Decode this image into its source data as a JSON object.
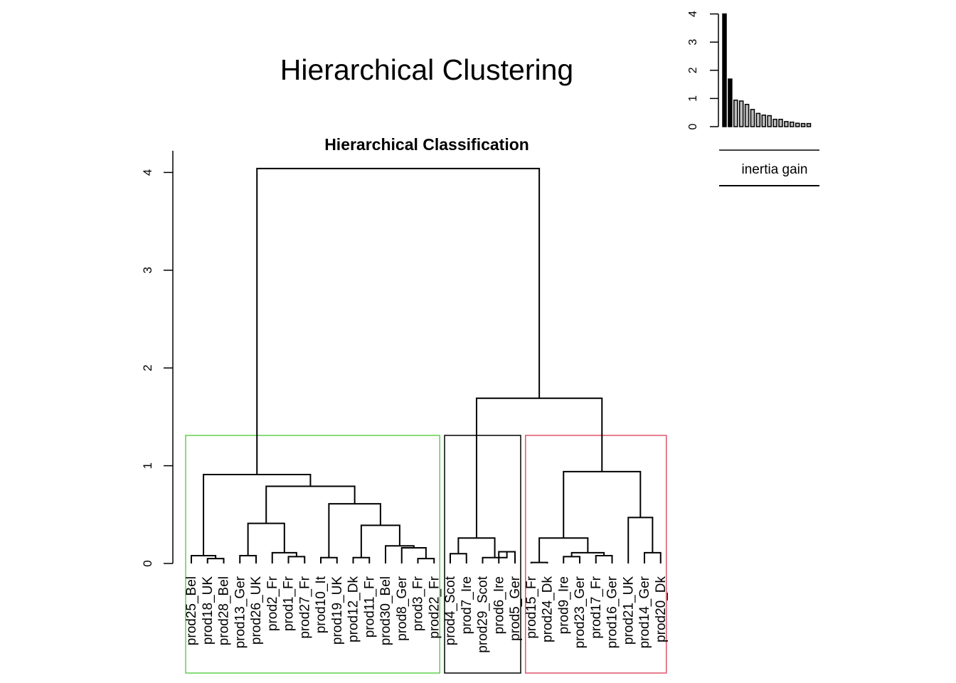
{
  "figure_title": "Hierarchical Clustering",
  "legend_label": "inertia gain",
  "chart_data": [
    {
      "type": "dendrogram",
      "title": "Hierarchical Classification",
      "ylim": [
        0,
        4.2
      ],
      "y_ticks": [
        0,
        1,
        2,
        3,
        4
      ],
      "leaves": [
        "prod25_Bel",
        "prod18_UK",
        "prod28_Bel",
        "prod13_Ger",
        "prod26_UK",
        "prod2_Fr",
        "prod1_Fr",
        "prod27_Fr",
        "prod10_It",
        "prod19_UK",
        "prod12_Dk",
        "prod11_Fr",
        "prod30_Bel",
        "prod8_Ger",
        "prod3_Fr",
        "prod22_Fr",
        "prod4_Scot",
        "prod7_Ire",
        "prod29_Scot",
        "prod6_Ire",
        "prod5_Ger",
        "prod15_Fr",
        "prod24_Dk",
        "prod9_Ire",
        "prod23_Ger",
        "prod17_Fr",
        "prod16_Ger",
        "prod21_UK",
        "prod14_Ger",
        "prod20_Dk"
      ],
      "merges": [
        {
          "id": "a1",
          "left": "prod18_UK",
          "right": "prod28_Bel",
          "height": 0.05
        },
        {
          "id": "a2",
          "left": "prod25_Bel",
          "right": "a1",
          "height": 0.08
        },
        {
          "id": "a3",
          "left": "prod1_Fr",
          "right": "prod27_Fr",
          "height": 0.07
        },
        {
          "id": "a4",
          "left": "prod2_Fr",
          "right": "a3",
          "height": 0.11
        },
        {
          "id": "a5",
          "left": "prod13_Ger",
          "right": "prod26_UK",
          "height": 0.08
        },
        {
          "id": "a6",
          "left": "a5",
          "right": "a4",
          "height": 0.41
        },
        {
          "id": "a7",
          "left": "prod10_It",
          "right": "prod19_UK",
          "height": 0.06
        },
        {
          "id": "a8",
          "left": "prod12_Dk",
          "right": "prod11_Fr",
          "height": 0.06
        },
        {
          "id": "a9",
          "left": "prod3_Fr",
          "right": "prod22_Fr",
          "height": 0.05
        },
        {
          "id": "a10",
          "left": "prod8_Ger",
          "right": "a9",
          "height": 0.16
        },
        {
          "id": "a11",
          "left": "prod30_Bel",
          "right": "a10",
          "height": 0.18
        },
        {
          "id": "a12",
          "left": "a8",
          "right": "a11",
          "height": 0.39
        },
        {
          "id": "a13",
          "left": "a7",
          "right": "a12",
          "height": 0.61
        },
        {
          "id": "a14",
          "left": "a6",
          "right": "a13",
          "height": 0.79
        },
        {
          "id": "a15",
          "left": "a2",
          "right": "a14",
          "height": 0.91
        },
        {
          "id": "b1",
          "left": "prod6_Ire",
          "right": "prod5_Ger",
          "height": 0.12
        },
        {
          "id": "b2",
          "left": "prod4_Scot",
          "right": "prod7_Ire",
          "height": 0.1
        },
        {
          "id": "b3",
          "left": "prod29_Scot",
          "right": "b1",
          "height": 0.06
        },
        {
          "id": "b4",
          "left": "b2",
          "right": "b3",
          "height": 0.26
        },
        {
          "id": "c1",
          "left": "prod15_Fr",
          "right": "prod24_Dk",
          "height": 0.01
        },
        {
          "id": "c2",
          "left": "prod9_Ire",
          "right": "prod23_Ger",
          "height": 0.07
        },
        {
          "id": "c3",
          "left": "prod17_Fr",
          "right": "prod16_Ger",
          "height": 0.08
        },
        {
          "id": "c4",
          "left": "c2",
          "right": "c3",
          "height": 0.11
        },
        {
          "id": "c5",
          "left": "c1",
          "right": "c4",
          "height": 0.26
        },
        {
          "id": "c6",
          "left": "prod14_Ger",
          "right": "prod20_Dk",
          "height": 0.11
        },
        {
          "id": "c7",
          "left": "prod21_UK",
          "right": "c6",
          "height": 0.47
        },
        {
          "id": "c8",
          "left": "c5",
          "right": "c7",
          "height": 0.94
        },
        {
          "id": "d1",
          "left": "b4",
          "right": "c8",
          "height": 1.69
        },
        {
          "id": "root",
          "left": "a15",
          "right": "d1",
          "height": 4.04
        }
      ],
      "clusters": [
        {
          "first_leaf": 0,
          "last_leaf": 15,
          "color": "#61D04F"
        },
        {
          "first_leaf": 16,
          "last_leaf": 20,
          "color": "#000000"
        },
        {
          "first_leaf": 21,
          "last_leaf": 29,
          "color": "#DF536B"
        }
      ]
    },
    {
      "type": "bar",
      "name": "inertia gain",
      "ylim": [
        0,
        4
      ],
      "y_ticks": [
        0,
        1,
        2,
        3,
        4
      ],
      "values": [
        4.04,
        1.69,
        0.94,
        0.91,
        0.79,
        0.61,
        0.47,
        0.41,
        0.39,
        0.26,
        0.26,
        0.18,
        0.16,
        0.12,
        0.11,
        0.11
      ]
    }
  ]
}
